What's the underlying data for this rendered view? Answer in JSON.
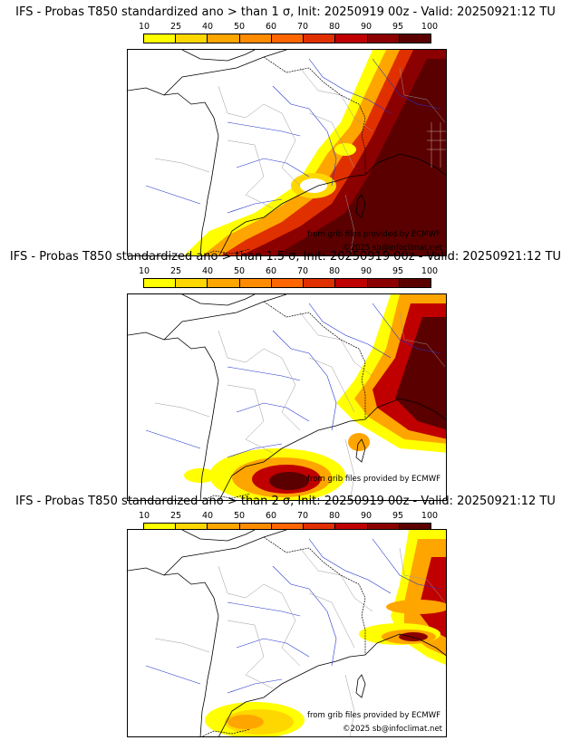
{
  "colorbar": {
    "ticks": [
      "10",
      "25",
      "40",
      "50",
      "60",
      "70",
      "80",
      "90",
      "95",
      "100"
    ],
    "colors": [
      "#ffff00",
      "#ffd700",
      "#ffa500",
      "#ff8c00",
      "#ff6600",
      "#e03000",
      "#c00000",
      "#8b0000",
      "#5a0000"
    ]
  },
  "panels": [
    {
      "title": "IFS - Probas T850  standardized ano > than 1 σ, Init: 20250919 00z - Valid: 20250921:12 TU",
      "credit_source": "from grib files provided by ECMWF",
      "credit_copyright": "©2025 sb@infoclimat.net"
    },
    {
      "title": "IFS - Probas T850  standardized ano > than 1.5 σ, Init: 20250919 00z - Valid: 20250921:12 TU",
      "credit_source": "from grib files provided by ECMWF",
      "credit_copyright": "©2025 sb@infoclimat.net"
    },
    {
      "title": "IFS - Probas T850  standardized ano > than 2 σ, Init: 20250919 00z - Valid: 20250921:12 TU",
      "credit_source": "from grib files provided by ECMWF",
      "credit_copyright": "©2025 sb@infoclimat.net"
    }
  ]
}
